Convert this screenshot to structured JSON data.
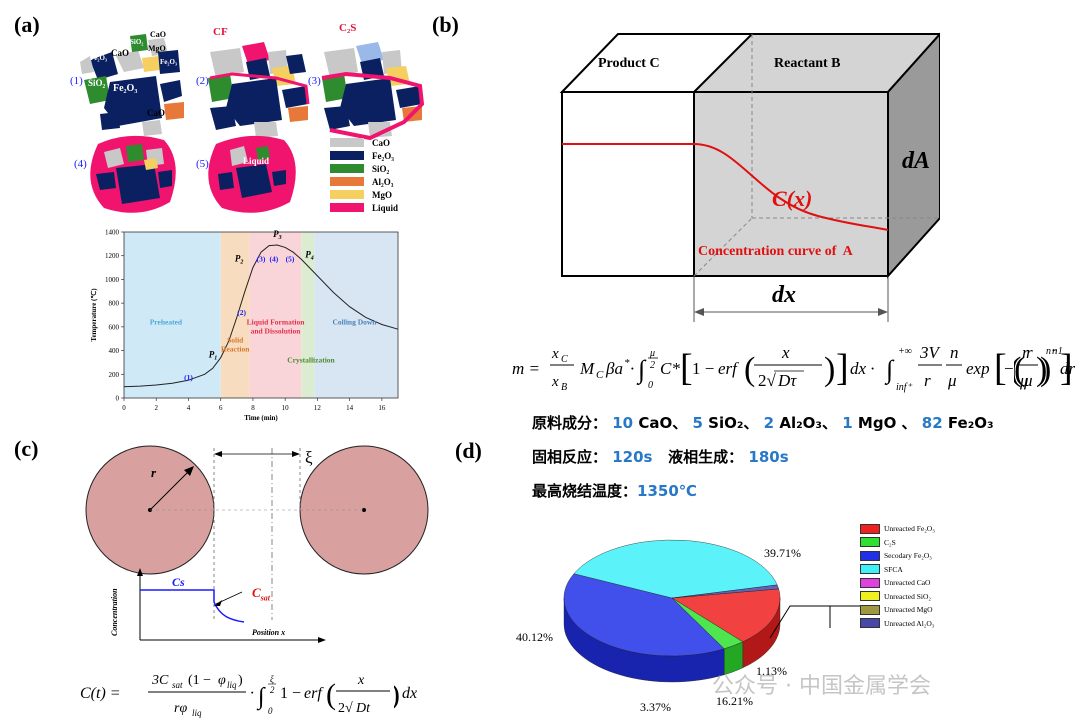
{
  "panels": {
    "a": "(a)",
    "b": "(b)",
    "c": "(c)",
    "d": "(d)"
  },
  "panel_a": {
    "steps": [
      "(1)",
      "(2)",
      "(3)",
      "(4)",
      "(5)"
    ],
    "grain_labels": [
      "CaO",
      "SiO₂",
      "MgO",
      "Fe₂O₃",
      "Fe₂O₃",
      "SiO₂",
      "CaO",
      "Fe₂O₃",
      "Al₂O₃",
      "CaO",
      "CaO"
    ],
    "callouts": {
      "cf": "CF",
      "c2s": "C₂S",
      "liquid": "Liquid"
    },
    "legend": [
      {
        "label": "CaO",
        "color": "#c8c8c8"
      },
      {
        "label": "Fe₂O₃",
        "color": "#0b2060"
      },
      {
        "label": "SiO₂",
        "color": "#2e8b2e"
      },
      {
        "label": "Al₂O₃",
        "color": "#e8783a"
      },
      {
        "label": "MgO",
        "color": "#f5d060"
      },
      {
        "label": "Liquid",
        "color": "#f0146e"
      }
    ]
  },
  "chart_data": {
    "type": "line",
    "xlabel": "Time (min)",
    "ylabel": "Temperature (℃)",
    "xlim": [
      0,
      17
    ],
    "ylim": [
      0,
      1400
    ],
    "xticks": [
      "0",
      "2",
      "4",
      "6",
      "8",
      "10",
      "12",
      "14",
      "16"
    ],
    "yticks": [
      "0",
      "200",
      "400",
      "600",
      "800",
      "1000",
      "1200",
      "1400"
    ],
    "series": [
      {
        "x": [
          0,
          1,
          2,
          3,
          4,
          5,
          5.5,
          6,
          6.5,
          7,
          7.5,
          8,
          8.5,
          9,
          9.5,
          10,
          10.5,
          11,
          12,
          13,
          14,
          15,
          16,
          17
        ],
        "y": [
          95,
          100,
          110,
          125,
          150,
          200,
          250,
          340,
          480,
          680,
          900,
          1100,
          1230,
          1285,
          1290,
          1270,
          1230,
          1170,
          1030,
          890,
          770,
          680,
          620,
          580
        ]
      }
    ],
    "regions": [
      {
        "label": "Preheated",
        "x0": 0,
        "x1": 6,
        "color": "#cfe9f7",
        "text_color": "#4aa8d8"
      },
      {
        "label": "Solid\nReaction",
        "x0": 6,
        "x1": 7.8,
        "color": "#f8dcc0",
        "text_color": "#d7782a"
      },
      {
        "label": "Liquid Formation\nand Dissolution",
        "x0": 7.8,
        "x1": 11,
        "color": "#f9d4d8",
        "text_color": "#e0304a"
      },
      {
        "label": "Crystallization",
        "x0": 11,
        "x1": 11.8,
        "color": "#dcecd0",
        "text_color": "#4c8a2c"
      },
      {
        "label": "Colling Down",
        "x0": 11.8,
        "x1": 17,
        "color": "#d8e6f4",
        "text_color": "#4a80b8"
      }
    ],
    "points": [
      {
        "label": "P1",
        "x": 6,
        "y": 340
      },
      {
        "label": "P2",
        "x": 7.5,
        "y": 1100
      },
      {
        "label": "P3",
        "x": 9.5,
        "y": 1290
      },
      {
        "label": "P4",
        "x": 11,
        "y": 1170
      }
    ],
    "step_labels": [
      {
        "label": "(1)",
        "x": 4,
        "y": 150
      },
      {
        "label": "(2)",
        "x": 7.3,
        "y": 700
      },
      {
        "label": "(3)",
        "x": 8.5,
        "y": 1150
      },
      {
        "label": "(4)",
        "x": 9.3,
        "y": 1150
      },
      {
        "label": "(5)",
        "x": 10.3,
        "y": 1150
      }
    ]
  },
  "panel_b": {
    "product": "Product C",
    "reactant": "Reactant B",
    "area": "dA",
    "curve": "C(x)",
    "curve_caption": "Concentration curve of  A",
    "width": "dx",
    "equation": "m = (x_C / x_B) M_C β a* · ∫₀^(μ/2) C*[1 − erf(x / 2√(Dτ))] dx · ∫_(inf⁺)^(+∞) (3V/r)(n/μ) exp[−(r/μ)ⁿ](r/μ)ⁿ⁻¹ dr",
    "raw": {
      "label": "原料成分：",
      "values": [
        "10",
        "CaO、",
        "5",
        "SiO₂、",
        "2",
        "Al₂O₃、",
        "1",
        "MgO 、",
        "82",
        "Fe₂O₃"
      ]
    },
    "solid_label": "固相反应：",
    "solid_value": "120s",
    "liquid_label": "液相生成：",
    "liquid_value": "180s",
    "max_label": "最高烧结温度：",
    "max_value": "1350℃"
  },
  "panel_c": {
    "gap": "ξ",
    "radius": "r",
    "cs": "Cs",
    "csat": "C",
    "csat_sub": "sat",
    "ylabel": "Concentration",
    "xlabel": "Position x",
    "equation": "C(t) = 3C_sat(1 − φ_liq) / (r φ_liq) · ∫₀^(ξ/2) 1 − erf(x / 2√(Dt)) dx"
  },
  "panel_d": {
    "slices": [
      {
        "label": "Unreacted Fe₂O₃",
        "value": 16.21,
        "color": "#ee2020"
      },
      {
        "label": "C₂S",
        "value": 3.37,
        "color": "#30e030"
      },
      {
        "label": "Secodary Fe₂O₃",
        "value": 40.12,
        "color": "#2030e8"
      },
      {
        "label": "SFCA",
        "value": 39.71,
        "color": "#40f0f8"
      },
      {
        "label": "Unreacted CaO",
        "value": 0,
        "color": "#e040e0"
      },
      {
        "label": "Unreacted SiO₂",
        "value": 0,
        "color": "#f0f020"
      },
      {
        "label": "Unreacted MgO",
        "value": 0,
        "color": "#a09840"
      },
      {
        "label": "Unreacted Al₂O₃",
        "value": 1.13,
        "color": "#4848a8"
      }
    ],
    "pct_labels": [
      "39.71%",
      "40.12%",
      "3.37%",
      "16.21%",
      "1.13%"
    ]
  },
  "watermark": "公众号 · 中国金属学会"
}
